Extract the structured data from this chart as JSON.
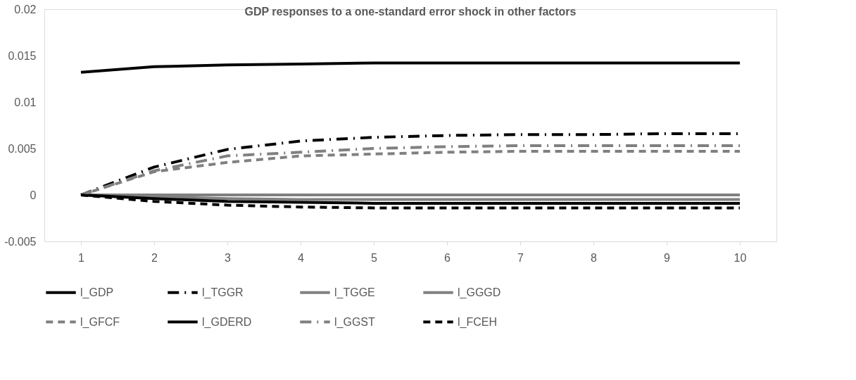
{
  "chart_data": {
    "type": "line",
    "title": "GDP responses to a one-standard error shock in other factors",
    "categories": [
      "1",
      "2",
      "3",
      "4",
      "5",
      "6",
      "7",
      "8",
      "9",
      "10"
    ],
    "ylim": [
      -0.005,
      0.02
    ],
    "yticks": [
      -0.005,
      0,
      0.005,
      0.01,
      0.015,
      0.02
    ],
    "grid": false,
    "legend": "bottom",
    "marker": "none",
    "series": [
      {
        "name": "l_GDP",
        "color": "#000000",
        "line_style": "solid",
        "values": [
          0.0132,
          0.0138,
          0.014,
          0.0141,
          0.0142,
          0.0142,
          0.0142,
          0.0142,
          0.0142,
          0.0142
        ]
      },
      {
        "name": "l_TGGR",
        "color": "#000000",
        "line_style": "dashdot",
        "values": [
          0,
          0.003,
          0.0049,
          0.0058,
          0.0062,
          0.0064,
          0.0065,
          0.0065,
          0.0066,
          0.0066
        ]
      },
      {
        "name": "l_TGGE",
        "color": "#808080",
        "line_style": "solid",
        "values": [
          0,
          0,
          0,
          0,
          0,
          0,
          0,
          0,
          0,
          0
        ]
      },
      {
        "name": "l_GGGD",
        "color": "#808080",
        "line_style": "solid",
        "values": [
          0,
          -0.0002,
          -0.0004,
          -0.0005,
          -0.0005,
          -0.0005,
          -0.0005,
          -0.0005,
          -0.0005,
          -0.0005
        ]
      },
      {
        "name": "l_GFCF",
        "color": "#808080",
        "line_style": "dashed",
        "values": [
          0,
          0.0025,
          0.0035,
          0.0042,
          0.0044,
          0.0046,
          0.0047,
          0.0047,
          0.0047,
          0.0047
        ]
      },
      {
        "name": "l_GDERD",
        "color": "#000000",
        "line_style": "solid",
        "values": [
          0,
          -0.0004,
          -0.0007,
          -0.0008,
          -0.0009,
          -0.0009,
          -0.0009,
          -0.0009,
          -0.0009,
          -0.0009
        ]
      },
      {
        "name": "l_GGST",
        "color": "#808080",
        "line_style": "dashdot",
        "values": [
          0,
          0.0026,
          0.0042,
          0.0046,
          0.005,
          0.0052,
          0.0053,
          0.0053,
          0.0053,
          0.0053
        ]
      },
      {
        "name": "l_FCEH",
        "color": "#000000",
        "line_style": "dashed",
        "values": [
          0,
          -0.0007,
          -0.0011,
          -0.0013,
          -0.0014,
          -0.0014,
          -0.0014,
          -0.0014,
          -0.0014,
          -0.0014
        ]
      }
    ]
  }
}
